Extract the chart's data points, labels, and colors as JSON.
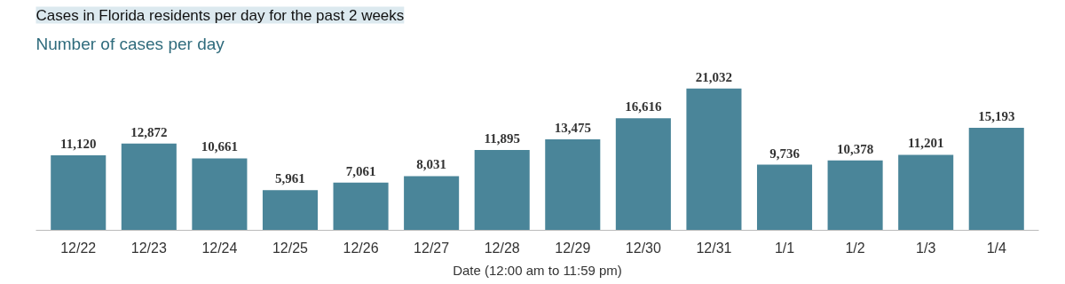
{
  "chart_data": {
    "type": "bar",
    "title": "Cases in Florida residents per day for the past 2 weeks",
    "subtitle": "Number of cases per day",
    "xlabel": "Date (12:00 am to 11:59 pm)",
    "categories": [
      "12/22",
      "12/23",
      "12/24",
      "12/25",
      "12/26",
      "12/27",
      "12/28",
      "12/29",
      "12/30",
      "12/31",
      "1/1",
      "1/2",
      "1/3",
      "1/4"
    ],
    "values": [
      11120,
      12872,
      10661,
      5961,
      7061,
      8031,
      11895,
      13475,
      16616,
      21032,
      9736,
      10378,
      11201,
      15193
    ],
    "value_labels": [
      "11,120",
      "12,872",
      "10,661",
      "5,961",
      "7,061",
      "8,031",
      "11,895",
      "13,475",
      "16,616",
      "21,032",
      "9,736",
      "10,378",
      "11,201",
      "15,193"
    ],
    "color": "#4a8599"
  }
}
